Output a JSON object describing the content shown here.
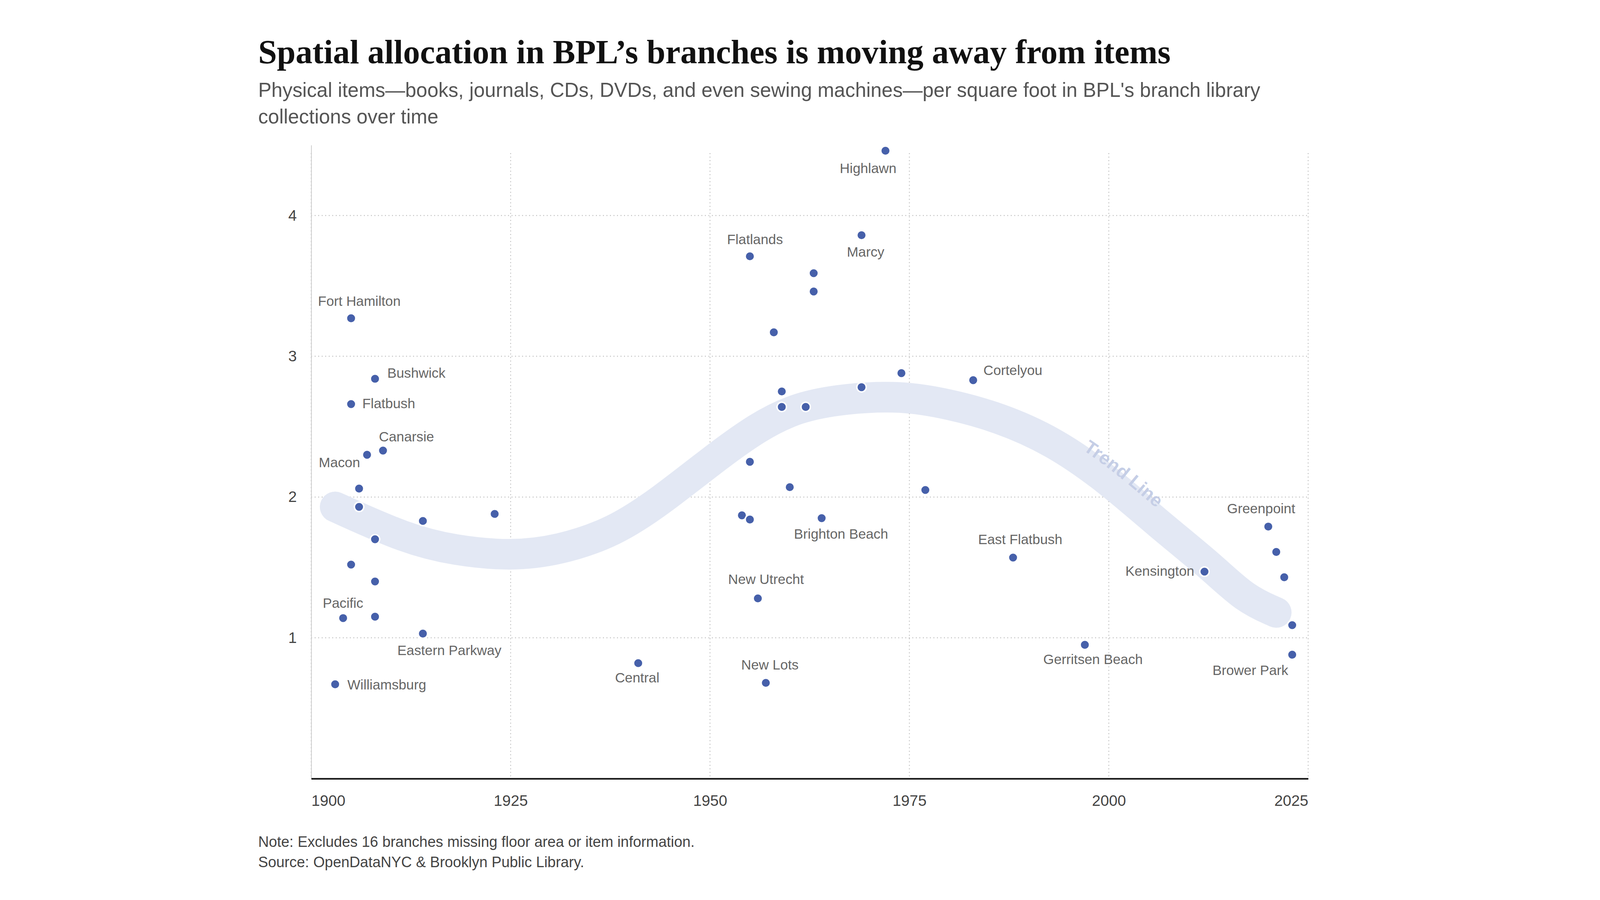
{
  "chart_data": {
    "type": "scatter",
    "title": "Spatial allocation in BPL’s branches is moving away from items",
    "subtitle": "Physical items—books, journals, CDs, DVDs, and even sewing machines—per square foot in BPL's branch library collections over time",
    "note": "Note: Excludes 16 branches missing floor area or item information.",
    "source": "Source: OpenDataNYC & Brooklyn Public Library.",
    "xlim": [
      1900,
      2025
    ],
    "xticks": [
      1900,
      1925,
      1950,
      1975,
      2000,
      2025
    ],
    "ylim": [
      0,
      4.5
    ],
    "yticks": [
      1,
      2,
      3,
      4
    ],
    "grid": true,
    "series": [
      {
        "type": "scatter",
        "marker": "circle",
        "color": "#4660aa",
        "x": [
          1905,
          1908,
          1905,
          1907,
          1909,
          1906,
          1906,
          1908,
          1905,
          1908,
          1904,
          1908,
          1914,
          1903,
          1914,
          1923,
          1941,
          1955,
          1958,
          1963,
          1963,
          1969,
          1972,
          1959,
          1959,
          1962,
          1969,
          1974,
          1955,
          1960,
          1977,
          1954,
          1955,
          1964,
          1956,
          1957,
          1983,
          1988,
          1997,
          2012,
          2020,
          2021,
          2022,
          2023,
          2023
        ],
        "values": [
          3.27,
          2.84,
          2.66,
          2.3,
          2.33,
          2.06,
          1.93,
          1.7,
          1.52,
          1.4,
          1.14,
          1.15,
          1.03,
          0.67,
          1.83,
          1.88,
          0.82,
          3.71,
          3.17,
          3.59,
          3.46,
          3.86,
          4.46,
          2.75,
          2.64,
          2.64,
          2.78,
          2.88,
          2.25,
          2.07,
          2.05,
          1.87,
          1.84,
          1.85,
          1.28,
          0.68,
          2.83,
          1.57,
          0.95,
          1.47,
          1.79,
          1.61,
          1.43,
          1.09,
          0.88
        ],
        "labels": [
          "Fort Hamilton",
          "Bushwick",
          "Flatbush",
          null,
          "Canarsie",
          "Macon",
          null,
          null,
          null,
          null,
          "Pacific",
          null,
          "Eastern Parkway",
          "Williamsburg",
          null,
          null,
          "Central",
          "Flatlands",
          null,
          null,
          null,
          "Marcy",
          "Highlawn",
          null,
          null,
          null,
          null,
          null,
          null,
          null,
          null,
          null,
          null,
          "Brighton Beach",
          "New Utrecht",
          "New Lots",
          "Cortelyou",
          "East Flatbush",
          "Gerritsen Beach",
          "Kensington",
          "Greenpoint",
          null,
          null,
          null,
          "Brower Park"
        ]
      },
      {
        "type": "line",
        "name": "Trend Line",
        "color": "#e3e8f4",
        "line_style": "solid",
        "x": [
          1903,
          1912,
          1918,
          1925,
          1931,
          1938,
          1944,
          1950,
          1956,
          1961,
          1967,
          1974,
          1980,
          1986,
          1993,
          2000,
          2006,
          2013,
          2017,
          2021
        ],
        "values": [
          1.93,
          1.7,
          1.62,
          1.58,
          1.62,
          1.75,
          1.98,
          2.25,
          2.5,
          2.64,
          2.7,
          2.72,
          2.66,
          2.57,
          2.4,
          2.12,
          1.82,
          1.5,
          1.28,
          1.18
        ]
      }
    ]
  }
}
